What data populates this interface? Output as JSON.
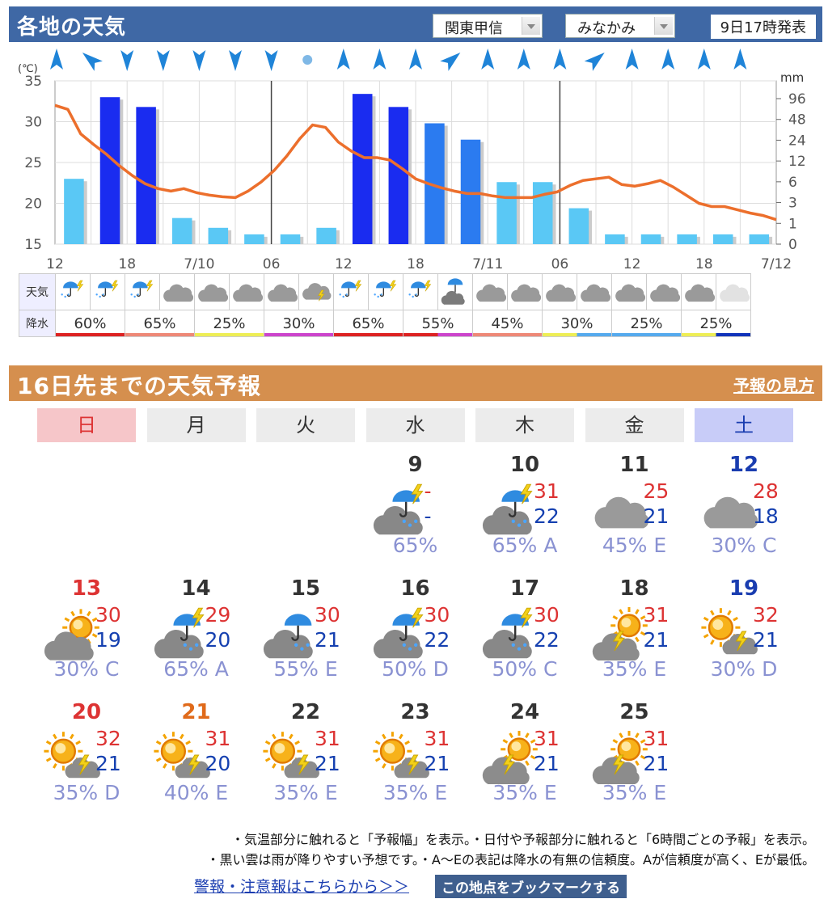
{
  "header": {
    "title": "各地の天気",
    "region": "関東甲信",
    "place": "みなかみ",
    "issued": "9日17時発表"
  },
  "chart_data": {
    "type": "line",
    "temp_unit": "(℃)",
    "precip_unit": "mm",
    "temp_ticks": [
      "35",
      "30",
      "25",
      "20",
      "15"
    ],
    "precip_ticks": [
      "96",
      "48",
      "24",
      "12",
      "6",
      "3",
      "1",
      "0"
    ],
    "x_ticks": [
      "12",
      "18",
      "7/10",
      "06",
      "12",
      "18",
      "7/11",
      "06",
      "12",
      "18",
      "7/12"
    ],
    "temperature": [
      32,
      31.5,
      28.5,
      27.2,
      26,
      24.6,
      23.4,
      22.4,
      21.8,
      21.5,
      21.8,
      21.3,
      21,
      20.8,
      20.7,
      21.5,
      22.6,
      24,
      25.8,
      27.9,
      29.6,
      29.3,
      27.5,
      26.4,
      25.6,
      25.6,
      25.3,
      24.2,
      23,
      22.4,
      21.9,
      21.5,
      21.2,
      21.2,
      20.9,
      20.7,
      20.7,
      20.7,
      21.1,
      21.4,
      22.2,
      22.8,
      23,
      23.2,
      22.3,
      22.1,
      22.4,
      22.8,
      22,
      21,
      20,
      19.6,
      19.6,
      19.2,
      18.8,
      18.5,
      18
    ],
    "wind": [
      "up",
      "ul",
      "down",
      "down",
      "down",
      "down",
      "down",
      "calm",
      "up",
      "up",
      "up",
      "ur",
      "up",
      "up",
      "up",
      "ur",
      "up",
      "up",
      "up",
      "up"
    ],
    "precip_bars": [
      2,
      4.5,
      4.2,
      0.8,
      0.5,
      0.3,
      0.3,
      0.5,
      4.6,
      4.2,
      3.7,
      3.2,
      1.9,
      1.9,
      1.1,
      0.3,
      0.3,
      0.3,
      0.3,
      0.3
    ],
    "bar_colors": [
      "#5ac8f5",
      "#1a2cf0",
      "#1a2cf0",
      "#5ac8f5",
      "#5ac8f5",
      "#5ac8f5",
      "#5ac8f5",
      "#5ac8f5",
      "#1a2cf0",
      "#1a2cf0",
      "#2b7bf0",
      "#2b7bf0",
      "#5ac8f5",
      "#5ac8f5",
      "#5ac8f5",
      "#5ac8f5",
      "#5ac8f5",
      "#5ac8f5",
      "#5ac8f5",
      "#5ac8f5"
    ]
  },
  "hourly": {
    "weather_label": "天気",
    "precip_label": "降水",
    "icons": [
      "umbrella-thunder",
      "umbrella-thunder",
      "umbrella-thunder",
      "cloud",
      "cloud",
      "cloud",
      "cloud",
      "cloud-thunder",
      "umbrella-thunder",
      "umbrella-thunder",
      "umbrella-thunder",
      "umbrella-cloud",
      "cloud",
      "cloud",
      "cloud",
      "cloud",
      "cloud",
      "cloud",
      "cloud",
      "cloud-light"
    ],
    "pops": [
      "60%",
      "65%",
      "25%",
      "30%",
      "65%",
      "55%",
      "45%",
      "30%",
      "25%",
      "25%"
    ],
    "pop_colors": [
      "#d22",
      "#d22",
      "#e87",
      "#e87",
      "#ee5",
      "#ee5",
      "#c4c",
      "#c4c",
      "#d22",
      "#d22",
      "#d22",
      "#c4c",
      "#e87",
      "#e87",
      "#ee5",
      "#5ae",
      "#5ae",
      "#5ae",
      "#ee5",
      "#13b"
    ]
  },
  "forecast": {
    "title": "16日先までの天気予報",
    "link": "予報の見方",
    "weekdays": [
      "日",
      "月",
      "火",
      "水",
      "木",
      "金",
      "土"
    ],
    "days": [
      {
        "col": 3,
        "row": 0,
        "date": "9",
        "date_color": "#333",
        "icon": "rain-thunder",
        "hi": "-",
        "lo": "-",
        "pop": "65%"
      },
      {
        "col": 4,
        "row": 0,
        "date": "10",
        "date_color": "#333",
        "icon": "rain-thunder",
        "hi": "31",
        "lo": "22",
        "pop": "65% A"
      },
      {
        "col": 5,
        "row": 0,
        "date": "11",
        "date_color": "#333",
        "icon": "cloud",
        "hi": "25",
        "lo": "21",
        "pop": "45% E"
      },
      {
        "col": 6,
        "row": 0,
        "date": "12",
        "date_color": "#1a3db0",
        "icon": "cloud",
        "hi": "28",
        "lo": "18",
        "pop": "30% C"
      },
      {
        "col": 0,
        "row": 1,
        "date": "13",
        "date_color": "#d33",
        "icon": "cloud-sun",
        "hi": "30",
        "lo": "19",
        "pop": "30% C"
      },
      {
        "col": 1,
        "row": 1,
        "date": "14",
        "date_color": "#333",
        "icon": "rain-thunder",
        "hi": "29",
        "lo": "20",
        "pop": "65% A"
      },
      {
        "col": 2,
        "row": 1,
        "date": "15",
        "date_color": "#333",
        "icon": "cloud-rain",
        "hi": "30",
        "lo": "21",
        "pop": "55% E"
      },
      {
        "col": 3,
        "row": 1,
        "date": "16",
        "date_color": "#333",
        "icon": "rain-thunder",
        "hi": "30",
        "lo": "22",
        "pop": "50% D"
      },
      {
        "col": 4,
        "row": 1,
        "date": "17",
        "date_color": "#333",
        "icon": "rain-thunder",
        "hi": "30",
        "lo": "22",
        "pop": "50% C"
      },
      {
        "col": 5,
        "row": 1,
        "date": "18",
        "date_color": "#333",
        "icon": "cloud-sun-thunder",
        "hi": "31",
        "lo": "21",
        "pop": "35% E"
      },
      {
        "col": 6,
        "row": 1,
        "date": "19",
        "date_color": "#1a3db0",
        "icon": "sun-thunder",
        "hi": "32",
        "lo": "21",
        "pop": "30% D"
      },
      {
        "col": 0,
        "row": 2,
        "date": "20",
        "date_color": "#d33",
        "icon": "sun-thunder",
        "hi": "32",
        "lo": "21",
        "pop": "35% D"
      },
      {
        "col": 1,
        "row": 2,
        "date": "21",
        "date_color": "#e06a1a",
        "icon": "sun-thunder",
        "hi": "31",
        "lo": "20",
        "pop": "40% E"
      },
      {
        "col": 2,
        "row": 2,
        "date": "22",
        "date_color": "#333",
        "icon": "sun-thunder",
        "hi": "31",
        "lo": "21",
        "pop": "35% E"
      },
      {
        "col": 3,
        "row": 2,
        "date": "23",
        "date_color": "#333",
        "icon": "sun-thunder",
        "hi": "31",
        "lo": "21",
        "pop": "35% E"
      },
      {
        "col": 4,
        "row": 2,
        "date": "24",
        "date_color": "#333",
        "icon": "cloud-sun-thunder",
        "hi": "31",
        "lo": "21",
        "pop": "35% E"
      },
      {
        "col": 5,
        "row": 2,
        "date": "25",
        "date_color": "#333",
        "icon": "cloud-sun-thunder",
        "hi": "31",
        "lo": "21",
        "pop": "35% E"
      }
    ]
  },
  "notes": {
    "line1": "・気温部分に触れると「予報幅」を表示。・日付や予報部分に触れると「6時間ごとの予報」を表示。",
    "line2": "・黒い雲は雨が降りやすい予想です。・A〜Eの表記は降水の有無の信頼度。Aが信頼度が高く、Eが最低。",
    "warn_link": "警報・注意報はこちらから＞＞",
    "bookmark": "この地点をブックマークする"
  }
}
